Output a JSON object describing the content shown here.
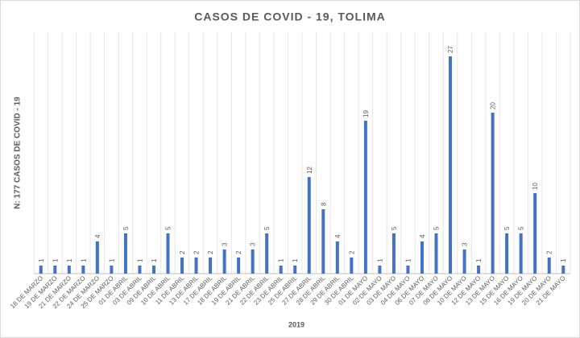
{
  "chart_data": {
    "type": "bar",
    "title": "CASOS DE COVID - 19, TOLIMA",
    "x_label": "2019",
    "y_label": "N: 177 CASOS DE COVID - 19",
    "categories": [
      "18 DE MARZO",
      "19 DE MARZO",
      "21 DE MARZO",
      "22 DE MARZO",
      "24 DE MARZO",
      "25 DE MARZO",
      "01 DE ABRIL",
      "03 DE ABRIL",
      "09 DE ABRIL",
      "10 DE ABRIL",
      "11 DE ABRIL",
      "13 DE ABRIL",
      "17 DE ABRIL",
      "18 DE ABRIL",
      "19 DE ABRIL",
      "21 DE ABRIL",
      "22 DE ABRIL",
      "23 DE ABRIL",
      "25 DE ABRIL",
      "27 DE ABRIL",
      "28 DE ABRIL",
      "29 DE ABRIL",
      "30 DE ABRIL",
      "01 DE MAYO",
      "02 DE MAYO",
      "03 DE MAYO",
      "04 DE MAYO",
      "06 DE MAYO",
      "07 DE MAYO",
      "08 DE MAYO",
      "10 DE MAYO",
      "12 DE MAYO",
      "13 DE MAYO",
      "15 DE MAYO",
      "16 DE MAYO",
      "19 DE MAYO",
      "20 DE MAYO",
      "21 DE MAYO"
    ],
    "values": [
      1,
      1,
      1,
      1,
      4,
      1,
      5,
      1,
      1,
      5,
      2,
      2,
      2,
      3,
      2,
      3,
      5,
      1,
      1,
      12,
      8,
      4,
      2,
      19,
      1,
      5,
      1,
      4,
      5,
      27,
      3,
      1,
      20,
      5,
      5,
      10,
      2,
      1
    ],
    "color": "#4472c4",
    "grid": true
  }
}
